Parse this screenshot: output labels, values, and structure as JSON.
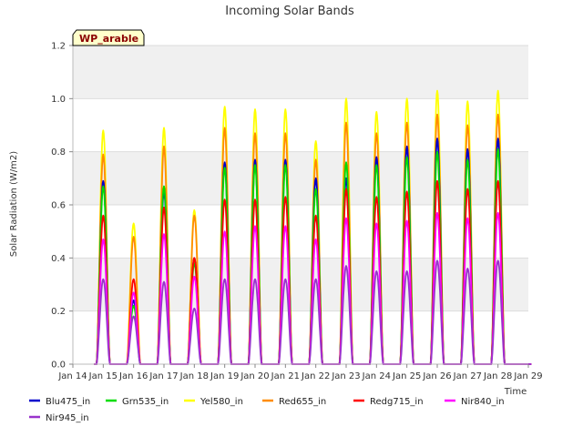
{
  "chart_data": {
    "type": "line",
    "title": "Incoming Solar Bands",
    "ylabel": "Solar Radiation (W/m2)",
    "xlabel": "Time",
    "site_label": "WP_arable",
    "ylim": [
      0,
      1.2
    ],
    "xlim_days": [
      14,
      29
    ],
    "x_tick_labels": [
      "Jan 14",
      "Jan 15",
      "Jan 16",
      "Jan 17",
      "Jan 18",
      "Jan 19",
      "Jan 20",
      "Jan 21",
      "Jan 22",
      "Jan 23",
      "Jan 24",
      "Jan 25",
      "Jan 26",
      "Jan 27",
      "Jan 28",
      "Jan 29"
    ],
    "y_ticks": [
      0.0,
      0.2,
      0.4,
      0.6,
      0.8,
      1.0,
      1.2
    ],
    "y_tick_labels": [
      "0.0",
      "0.2",
      "0.4",
      "0.6",
      "0.8",
      "1.0",
      "1.2"
    ],
    "grid": true,
    "legend_position": "bottom",
    "days": [
      "Jan 15",
      "Jan 16",
      "Jan 17",
      "Jan 18",
      "Jan 19",
      "Jan 20",
      "Jan 21",
      "Jan 22",
      "Jan 23",
      "Jan 24",
      "Jan 25",
      "Jan 26",
      "Jan 27",
      "Jan 28"
    ],
    "series": [
      {
        "name": "Blu475_in",
        "color": "#0000cc",
        "daily_peaks": [
          0.69,
          0.24,
          0.65,
          0.4,
          0.76,
          0.77,
          0.77,
          0.7,
          0.7,
          0.78,
          0.82,
          0.85,
          0.81,
          0.85
        ]
      },
      {
        "name": "Grn535_in",
        "color": "#00dd00",
        "daily_peaks": [
          0.67,
          0.22,
          0.67,
          0.38,
          0.74,
          0.75,
          0.75,
          0.66,
          0.76,
          0.75,
          0.78,
          0.8,
          0.77,
          0.81
        ]
      },
      {
        "name": "Yel580_in",
        "color": "#ffff00",
        "daily_peaks": [
          0.88,
          0.53,
          0.89,
          0.58,
          0.97,
          0.96,
          0.96,
          0.84,
          1.0,
          0.95,
          1.0,
          1.03,
          0.99,
          1.03
        ]
      },
      {
        "name": "Red655_in",
        "color": "#ff8c00",
        "daily_peaks": [
          0.79,
          0.48,
          0.82,
          0.56,
          0.89,
          0.87,
          0.87,
          0.77,
          0.91,
          0.87,
          0.91,
          0.94,
          0.9,
          0.94
        ]
      },
      {
        "name": "Redg715_in",
        "color": "#ff0000",
        "daily_peaks": [
          0.56,
          0.32,
          0.59,
          0.4,
          0.62,
          0.62,
          0.63,
          0.56,
          0.66,
          0.63,
          0.65,
          0.69,
          0.66,
          0.69
        ]
      },
      {
        "name": "Nir840_in",
        "color": "#ff00ff",
        "daily_peaks": [
          0.47,
          0.27,
          0.49,
          0.33,
          0.5,
          0.52,
          0.52,
          0.47,
          0.55,
          0.53,
          0.54,
          0.57,
          0.55,
          0.57
        ]
      },
      {
        "name": "Nir945_in",
        "color": "#9933cc",
        "daily_peaks": [
          0.32,
          0.18,
          0.31,
          0.21,
          0.32,
          0.32,
          0.32,
          0.32,
          0.37,
          0.35,
          0.35,
          0.39,
          0.36,
          0.39
        ]
      }
    ]
  }
}
